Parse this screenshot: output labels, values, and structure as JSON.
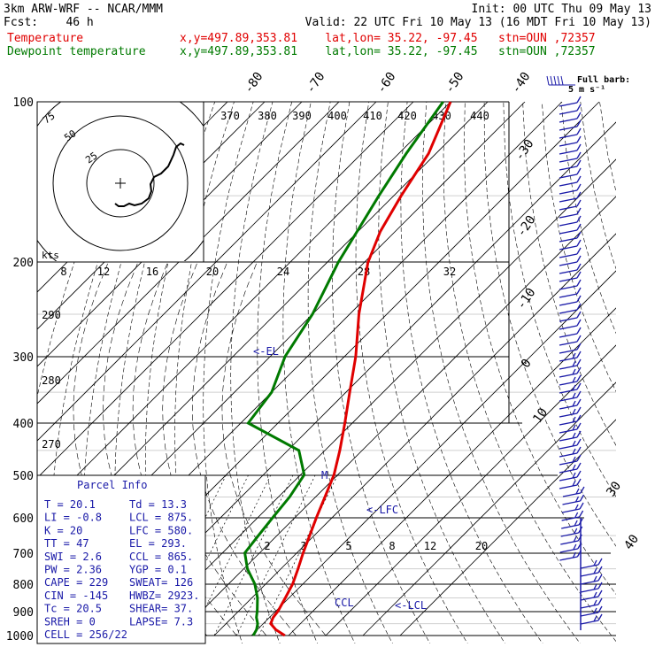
{
  "header": {
    "line1_left": "3km ARW-WRF -- NCAR/MMM",
    "line1_right": "Init: 00 UTC Thu 09 May 13",
    "line2_left": "Fcst:    46 h",
    "line2_right": "Valid: 22 UTC Fri 10 May 13 (16 MDT Fri 10 May 13)",
    "temp_label": "Temperature",
    "dew_label": "Dewpoint temperature",
    "temp_info": "x,y=497.89,353.81    lat,lon= 35.22, -97.45   stn=OUN ,72357",
    "dew_info": "x,y=497.89,353.81    lat,lon= 35.22, -97.45   stn=OUN ,72357"
  },
  "wind_legend": {
    "line1": "Full barb:",
    "line2": "5 m s⁻¹"
  },
  "hodograph": {
    "units": "kts",
    "rings": [
      "75",
      "50",
      "25"
    ]
  },
  "fl": {
    "lfc": "<-LFC",
    "el": "<-EL",
    "lcl": "<-LCL",
    "ccl": "CCL",
    "marker": "M"
  },
  "parcel_info": {
    "title": "Parcel Info",
    "rows": [
      [
        "T  =    20.1",
        "Td =  13.3"
      ],
      [
        "LI =    -0.8",
        "LCL =  875."
      ],
      [
        "K  =      20",
        "LFC =  580."
      ],
      [
        "TT =      47",
        "EL  =  293."
      ],
      [
        "SWI =    2.6",
        "CCL =  865."
      ],
      [
        "PW =    2.36",
        "YGP =   0.1"
      ],
      [
        "CAPE =   229",
        "SWEAT=   126"
      ],
      [
        "CIN =   -145",
        "HWBZ= 2923."
      ],
      [
        "Tc =    20.5",
        "SHEAR=  37."
      ],
      [
        "SREH =      0",
        "LAPSE=  7.3"
      ],
      [
        "CELL = 256/22",
        ""
      ]
    ]
  },
  "colors": {
    "temperature": "#e00000",
    "dewpoint": "#007a00",
    "barbs": "#1a1aa8"
  },
  "chart_data": {
    "type": "line",
    "title": "",
    "diagram": "skew-T log-P",
    "ylabel_ticks": [
      "100",
      "200",
      "300",
      "400",
      "500",
      "600",
      "700",
      "800",
      "900",
      "1000"
    ],
    "isotherm_labels": [
      "-80",
      "-70",
      "-60",
      "-50",
      "-40",
      "-30",
      "-20",
      "-10",
      "0",
      "10",
      "30",
      "40"
    ],
    "theta_labels": [
      "370",
      "380",
      "390",
      "400",
      "410",
      "420",
      "430",
      "440"
    ],
    "mixing_ratio_labels": [
      "8",
      "12",
      "16",
      "20",
      "24",
      "28",
      "32"
    ],
    "mixing_ratio_labels_low": [
      "2",
      "3",
      "5",
      "8",
      "12",
      "20"
    ],
    "theta_left_labels": [
      "290",
      "280",
      "270"
    ],
    "series": [
      {
        "name": "Temperature",
        "points": [
          [
            1000,
            29
          ],
          [
            975,
            25
          ],
          [
            950,
            22
          ],
          [
            925,
            21
          ],
          [
            900,
            20.6
          ],
          [
            850,
            19
          ],
          [
            800,
            17.2
          ],
          [
            750,
            14.6
          ],
          [
            700,
            11.7
          ],
          [
            650,
            8.8
          ],
          [
            600,
            5.7
          ],
          [
            550,
            2.5
          ],
          [
            500,
            -1
          ],
          [
            450,
            -6
          ],
          [
            400,
            -12
          ],
          [
            350,
            -19
          ],
          [
            300,
            -27
          ],
          [
            250,
            -37.5
          ],
          [
            200,
            -49
          ],
          [
            175,
            -54
          ],
          [
            150,
            -58
          ],
          [
            125,
            -62
          ],
          [
            100,
            -70
          ]
        ]
      },
      {
        "name": "Dewpoint temperature",
        "points": [
          [
            1000,
            20.5
          ],
          [
            975,
            19.8
          ],
          [
            950,
            18.5
          ],
          [
            925,
            16.5
          ],
          [
            900,
            15
          ],
          [
            850,
            11.5
          ],
          [
            800,
            7
          ],
          [
            750,
            1
          ],
          [
            700,
            -4
          ],
          [
            650,
            -5
          ],
          [
            600,
            -6
          ],
          [
            550,
            -7
          ],
          [
            500,
            -9
          ],
          [
            450,
            -17
          ],
          [
            400,
            -38
          ],
          [
            350,
            -40
          ],
          [
            300,
            -46
          ],
          [
            250,
            -50
          ],
          [
            200,
            -57
          ],
          [
            150,
            -64
          ],
          [
            125,
            -68
          ],
          [
            100,
            -72
          ]
        ]
      }
    ]
  }
}
